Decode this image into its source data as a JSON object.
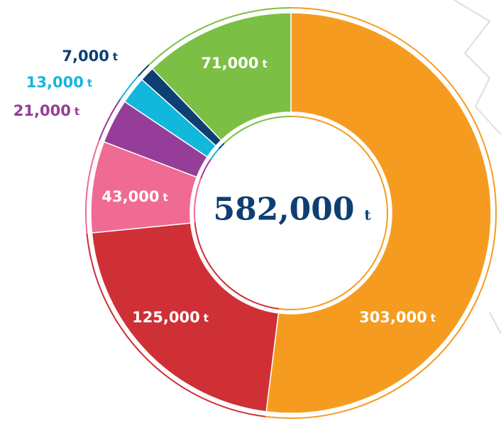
{
  "chart_data": {
    "type": "donut",
    "center_label": "582,000",
    "unit": "t",
    "categories": [
      null,
      null,
      null,
      null,
      null,
      null,
      null
    ],
    "values": [
      303000,
      125000,
      43000,
      21000,
      13000,
      7000,
      71000
    ],
    "value_labels": [
      "303,000",
      "125,000",
      "43,000",
      "21,000",
      "13,000",
      "7,000",
      "71,000"
    ],
    "colors": [
      "#f59c20",
      "#cf3035",
      "#ef6b93",
      "#953d98",
      "#12b7dc",
      "#0d3f73",
      "#7bbf44"
    ]
  }
}
